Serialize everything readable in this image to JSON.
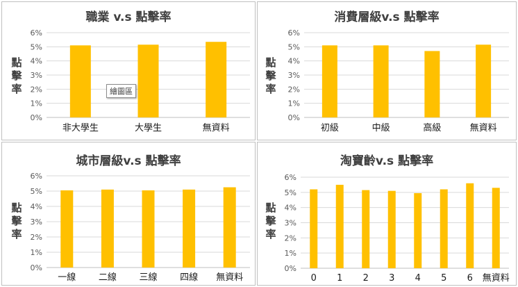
{
  "colors": {
    "bar": "#ffc000",
    "grid": "#d9d9d9",
    "axis": "#bfbfbf"
  },
  "tooltip_text": "繪圖區",
  "chart_data": [
    {
      "type": "bar",
      "title": "職業 v.s 點擊率",
      "ylabel": "點擊率",
      "ylim": [
        0,
        0.06
      ],
      "yticks": [
        "0%",
        "1%",
        "2%",
        "3%",
        "4%",
        "5%",
        "6%"
      ],
      "categories": [
        "非大學生",
        "大學生",
        "無資料"
      ],
      "values": [
        0.051,
        0.0515,
        0.0535
      ],
      "grid": true,
      "legend": "none"
    },
    {
      "type": "bar",
      "title": "消費層級v.s 點擊率",
      "ylabel": "點擊率",
      "ylim": [
        0,
        0.06
      ],
      "yticks": [
        "0%",
        "1%",
        "2%",
        "3%",
        "4%",
        "5%",
        "6%"
      ],
      "categories": [
        "初級",
        "中級",
        "高級",
        "無資料"
      ],
      "values": [
        0.051,
        0.051,
        0.047,
        0.0515
      ],
      "grid": true,
      "legend": "none"
    },
    {
      "type": "bar",
      "title": "城市層級v.s 點擊率",
      "ylabel": "點擊率",
      "ylim": [
        0,
        0.06
      ],
      "yticks": [
        "0%",
        "1%",
        "2%",
        "3%",
        "4%",
        "5%",
        "6%"
      ],
      "categories": [
        "一線",
        "二線",
        "三線",
        "四線",
        "無資料"
      ],
      "values": [
        0.0505,
        0.051,
        0.0505,
        0.051,
        0.0525
      ],
      "grid": true,
      "legend": "none"
    },
    {
      "type": "bar",
      "title": "淘寶齡v.s 點擊率",
      "ylabel": "點擊率",
      "ylim": [
        0,
        0.06
      ],
      "yticks": [
        "0%",
        "1%",
        "2%",
        "3%",
        "4%",
        "5%",
        "6%"
      ],
      "categories": [
        "0",
        "1",
        "2",
        "3",
        "4",
        "5",
        "6",
        "無資料"
      ],
      "values": [
        0.052,
        0.055,
        0.0515,
        0.051,
        0.0495,
        0.052,
        0.056,
        0.053
      ],
      "grid": true,
      "legend": "none"
    }
  ]
}
